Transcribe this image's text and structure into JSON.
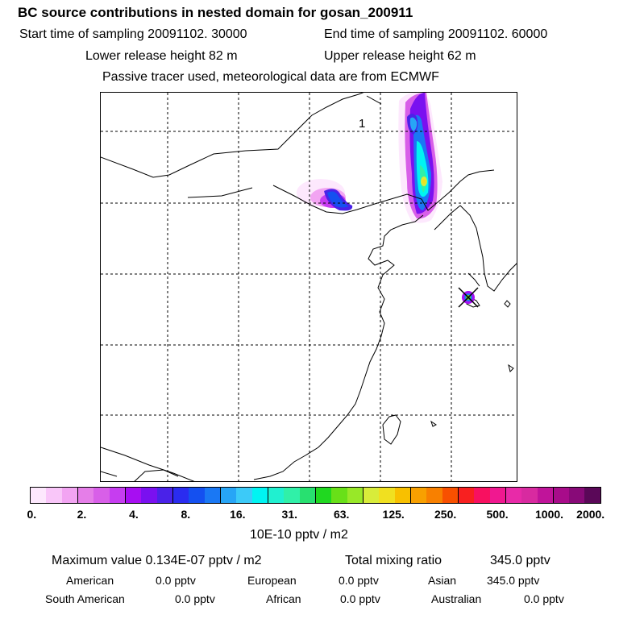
{
  "header": {
    "title": "BC  source contributions in nested domain for gosan_200911",
    "start_time": "Start time of sampling 20091102. 30000",
    "end_time": "End time of sampling 20091102. 60000",
    "lower_release": "Lower release height   82 m",
    "upper_release": "Upper release height   62 m",
    "tracer_note": "Passive tracer used, meteorological data are from ECMWF"
  },
  "map": {
    "contour_label": "1",
    "receptor_marker": "x-marker-icon"
  },
  "colorbar": {
    "colors": [
      "#fde8fd",
      "#f9c6f9",
      "#f2a4f2",
      "#e57ee8",
      "#d85fe8",
      "#c63df0",
      "#a70ef2",
      "#7a10f0",
      "#4a22e8",
      "#2a2cf0",
      "#1450f0",
      "#1a78f4",
      "#27a5f6",
      "#3ccaf8",
      "#00f4f2",
      "#20f0d0",
      "#30f0a8",
      "#28e070",
      "#20d820",
      "#68e018",
      "#98e828",
      "#d8ec3a",
      "#f0e020",
      "#f8c000",
      "#f8a000",
      "#f88000",
      "#f85000",
      "#f82020",
      "#f81060",
      "#f01890",
      "#e82aa8",
      "#d82aa0",
      "#c0149a",
      "#a80c8a",
      "#880a78",
      "#5a0858"
    ],
    "tick_labels": [
      "0.",
      "2.",
      "4.",
      "8.",
      "16.",
      "31.",
      "63.",
      "125.",
      "250.",
      "500.",
      "1000.",
      "2000."
    ],
    "unit": "10E-10 pptv / m2"
  },
  "stats": {
    "max_value": "Maximum value  0.134E-07 pptv / m2",
    "total_mixing": "Total mixing ratio",
    "total_mixing_value": "345.0 pptv",
    "american_label": "American",
    "american_value": "0.0 pptv",
    "european_label": "European",
    "european_value": "0.0 pptv",
    "asian_label": "Asian",
    "asian_value": "345.0 pptv",
    "south_american_label": "South American",
    "south_american_value": "0.0 pptv",
    "african_label": "African",
    "african_value": "0.0 pptv",
    "australian_label": "Australian",
    "australian_value": "0.0 pptv"
  }
}
